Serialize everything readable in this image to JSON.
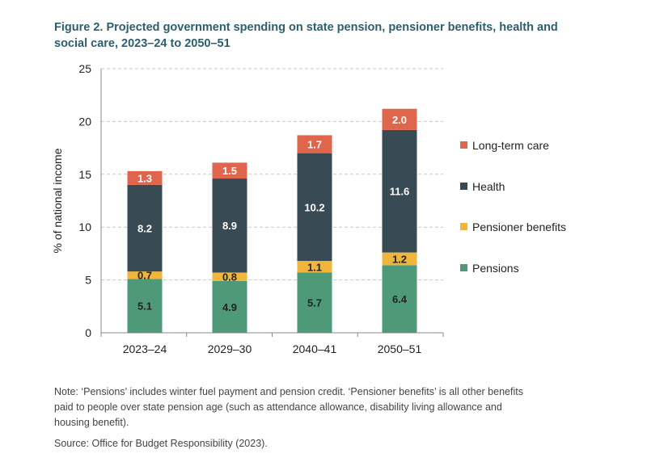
{
  "figure": {
    "title_line1": "Figure 2. Projected government spending on state pension, pensioner benefits, health and",
    "title_line2": "social care, 2023–24 to 2050–51"
  },
  "chart_data": {
    "type": "bar",
    "stacked": true,
    "ylabel": "% of national income",
    "xlabel": "",
    "ylim": [
      0,
      25
    ],
    "yticks": [
      0,
      5,
      10,
      15,
      20,
      25
    ],
    "grid": true,
    "categories": [
      "2023–24",
      "2029–30",
      "2040–41",
      "2050–51"
    ],
    "series": [
      {
        "name": "Pensions",
        "color": "#4e9a78",
        "values": [
          5.1,
          4.9,
          5.7,
          6.4
        ],
        "labels": [
          "5.1",
          "4.9",
          "5.7",
          "6.4"
        ]
      },
      {
        "name": "Pensioner benefits",
        "color": "#f0b63c",
        "values": [
          0.7,
          0.8,
          1.1,
          1.2
        ],
        "labels": [
          "0.7",
          "0.8",
          "1.1",
          "1.2"
        ]
      },
      {
        "name": "Health",
        "color": "#384a54",
        "values": [
          8.2,
          8.9,
          10.2,
          11.6
        ],
        "labels": [
          "8.2",
          "8.9",
          "10.2",
          "11.6"
        ]
      },
      {
        "name": "Long-term care",
        "color": "#e0654d",
        "values": [
          1.3,
          1.5,
          1.7,
          2.0
        ],
        "labels": [
          "1.3",
          "1.5",
          "1.7",
          "2.0"
        ]
      }
    ],
    "legend_order": [
      "Long-term care",
      "Health",
      "Pensioner benefits",
      "Pensions"
    ],
    "legend_position": "right"
  },
  "notes": {
    "note_line1": "Note: ‘Pensions’ includes winter fuel payment and pension credit. ‘Pensioner benefits’ is all other benefits",
    "note_line2": "paid to people over state pension age (such as attendance allowance, disability living allowance and",
    "note_line3": "housing benefit).",
    "source": "Source: Office for Budget Responsibility (2023)."
  }
}
